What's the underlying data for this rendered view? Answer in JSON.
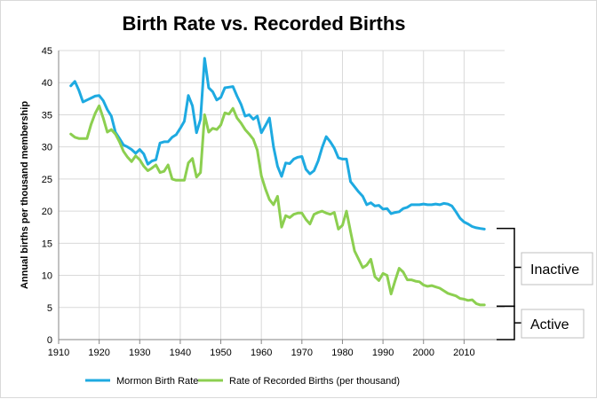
{
  "chart_data": {
    "type": "line",
    "title": "Birth Rate vs. Recorded Births",
    "ylabel": "Annual births per thousand membership",
    "xlabel": "",
    "xlim": [
      1910,
      2020
    ],
    "ylim": [
      0,
      45
    ],
    "xticks": [
      1910,
      1920,
      1930,
      1940,
      1950,
      1960,
      1970,
      1980,
      1990,
      2000,
      2010
    ],
    "yticks": [
      0,
      5,
      10,
      15,
      20,
      25,
      30,
      35,
      40,
      45
    ],
    "grid": true,
    "legend_position": "bottom",
    "series": [
      {
        "name": "Mormon Birth Rate",
        "color": "#1eaae1",
        "x": [
          1913,
          1914,
          1915,
          1916,
          1917,
          1918,
          1919,
          1920,
          1921,
          1922,
          1923,
          1924,
          1925,
          1926,
          1927,
          1928,
          1929,
          1930,
          1931,
          1932,
          1933,
          1934,
          1935,
          1936,
          1937,
          1938,
          1939,
          1940,
          1941,
          1942,
          1943,
          1944,
          1945,
          1946,
          1947,
          1948,
          1949,
          1950,
          1951,
          1952,
          1953,
          1954,
          1955,
          1956,
          1957,
          1958,
          1959,
          1960,
          1961,
          1962,
          1963,
          1964,
          1965,
          1966,
          1967,
          1968,
          1969,
          1970,
          1971,
          1972,
          1973,
          1974,
          1975,
          1976,
          1977,
          1978,
          1979,
          1980,
          1981,
          1982,
          1983,
          1984,
          1985,
          1986,
          1987,
          1988,
          1989,
          1990,
          1991,
          1992,
          1993,
          1994,
          1995,
          1996,
          1997,
          1998,
          1999,
          2000,
          2001,
          2002,
          2003,
          2004,
          2005,
          2006,
          2007,
          2008,
          2009,
          2010,
          2011,
          2012,
          2013,
          2014,
          2015
        ],
        "values": [
          39.5,
          40.2,
          38.8,
          37.0,
          37.3,
          37.6,
          37.9,
          38.0,
          37.2,
          35.8,
          34.8,
          32.3,
          31.3,
          30.3,
          30.0,
          29.6,
          29.0,
          29.6,
          28.9,
          27.3,
          27.8,
          28.0,
          30.6,
          30.8,
          30.8,
          31.5,
          31.9,
          32.9,
          34.0,
          38.0,
          36.4,
          32.2,
          34.3,
          43.8,
          39.2,
          38.6,
          37.3,
          37.7,
          39.2,
          39.3,
          39.4,
          37.9,
          36.6,
          34.8,
          35.0,
          34.3,
          34.8,
          32.2,
          33.3,
          34.5,
          30.0,
          27.0,
          25.4,
          27.5,
          27.4,
          28.1,
          28.4,
          28.5,
          26.5,
          25.8,
          26.3,
          27.8,
          29.9,
          31.6,
          30.8,
          29.8,
          28.3,
          28.1,
          28.1,
          24.6,
          23.8,
          23.0,
          22.3,
          21.0,
          21.3,
          20.8,
          20.9,
          20.3,
          20.4,
          19.6,
          19.8,
          19.9,
          20.4,
          20.6,
          21.0,
          21.0,
          21.0,
          21.1,
          21.0,
          21.0,
          21.1,
          21.0,
          21.2,
          21.1,
          20.8,
          19.9,
          18.9,
          18.3,
          18.0,
          17.6,
          17.4,
          17.3,
          17.2
        ]
      },
      {
        "name": "Rate of Recorded Births (per thousand)",
        "color": "#8ccf50",
        "x": [
          1913,
          1914,
          1915,
          1916,
          1917,
          1918,
          1919,
          1920,
          1921,
          1922,
          1923,
          1924,
          1925,
          1926,
          1927,
          1928,
          1929,
          1930,
          1931,
          1932,
          1933,
          1934,
          1935,
          1936,
          1937,
          1938,
          1939,
          1940,
          1941,
          1942,
          1943,
          1944,
          1945,
          1946,
          1947,
          1948,
          1949,
          1950,
          1951,
          1952,
          1953,
          1954,
          1955,
          1956,
          1957,
          1958,
          1959,
          1960,
          1961,
          1962,
          1963,
          1964,
          1965,
          1966,
          1967,
          1968,
          1969,
          1970,
          1971,
          1972,
          1973,
          1974,
          1975,
          1976,
          1977,
          1978,
          1979,
          1980,
          1981,
          1982,
          1983,
          1984,
          1985,
          1986,
          1987,
          1988,
          1989,
          1990,
          1991,
          1992,
          1993,
          1994,
          1995,
          1996,
          1997,
          1998,
          1999,
          2000,
          2001,
          2002,
          2003,
          2004,
          2005,
          2006,
          2007,
          2008,
          2009,
          2010,
          2011,
          2012,
          2013,
          2014,
          2015
        ],
        "values": [
          32.0,
          31.5,
          31.3,
          31.3,
          31.3,
          33.5,
          35.2,
          36.4,
          34.5,
          32.3,
          32.7,
          32.0,
          30.8,
          29.3,
          28.4,
          27.7,
          28.6,
          28.0,
          27.0,
          26.3,
          26.7,
          27.2,
          26.0,
          26.2,
          27.2,
          25.0,
          24.8,
          24.8,
          24.8,
          27.5,
          28.2,
          25.3,
          26.0,
          35.0,
          32.3,
          32.9,
          32.7,
          33.4,
          35.3,
          35.1,
          36.0,
          34.5,
          33.7,
          32.7,
          32.0,
          31.2,
          29.5,
          25.5,
          23.5,
          21.8,
          21.0,
          22.3,
          17.5,
          19.3,
          19.0,
          19.5,
          19.7,
          19.7,
          18.7,
          18.0,
          19.5,
          19.8,
          20.0,
          19.7,
          19.5,
          19.8,
          17.2,
          17.8,
          20.0,
          16.8,
          13.8,
          12.5,
          11.2,
          11.6,
          12.5,
          9.8,
          9.2,
          10.3,
          10.0,
          7.1,
          9.2,
          11.1,
          10.5,
          9.3,
          9.3,
          9.1,
          9.0,
          8.5,
          8.3,
          8.4,
          8.2,
          8.0,
          7.6,
          7.2,
          7.0,
          6.8,
          6.4,
          6.3,
          6.1,
          6.2,
          5.6,
          5.4,
          5.4
        ]
      }
    ],
    "annotations": [
      {
        "label": "Inactive",
        "from": 5.2,
        "to": 17.3
      },
      {
        "label": "Active",
        "from": 0,
        "to": 5.2
      }
    ]
  }
}
